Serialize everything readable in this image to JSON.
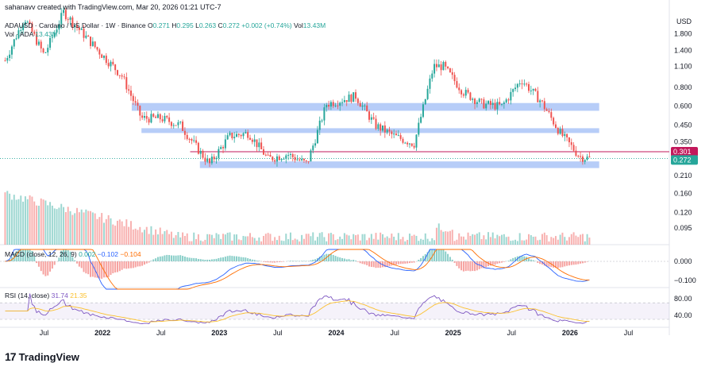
{
  "caption": "sahanavv created with TradingView.com, Mar 20, 2026 01:21 UTC-7",
  "legend": {
    "symbol": "ADAUSD · Cardano / US Dollar · 1W · Binance",
    "open_label": "O",
    "open": "0.271",
    "high_label": "H",
    "high": "0.295",
    "low_label": "L",
    "low": "0.263",
    "close_label": "C",
    "close": "0.272",
    "change": "+0.002 (+0.74%)",
    "vol_label": "Vol",
    "vol": "13.43M",
    "vol_ada_label": "Vol · ADA",
    "vol_ada": "13.43M",
    "macd_label": "MACD (close, 12, 26, 9)",
    "macd_v1": "0.002",
    "macd_v2": "−0.102",
    "macd_v3": "−0.104",
    "rsi_label": "RSI (14, close)",
    "rsi_v1": "31.74",
    "rsi_v2": "21.35"
  },
  "currency": "USD",
  "logo_text": "TradingView",
  "colors": {
    "up": "#26a69a",
    "down": "#ef5350",
    "zone": "#aac4f7",
    "resistance": "#c2185b",
    "macd_line": "#2962ff",
    "signal_line": "#ff6d00",
    "rsi_line": "#7e57c2",
    "rsi_ma": "#fbc02d"
  },
  "chart_data": [
    {
      "type": "candlestick",
      "title": "ADAUSD · Cardano / US Dollar · 1W · Binance",
      "y_scale": "log",
      "y_ticks": [
        "1.800",
        "1.400",
        "1.100",
        "0.800",
        "0.600",
        "0.450",
        "0.350",
        "0.210",
        "0.160",
        "0.120",
        "0.095"
      ],
      "x_ticks": [
        "Jul",
        "2022",
        "Jul",
        "2023",
        "Jul",
        "2024",
        "Jul",
        "2025",
        "Jul",
        "2026",
        "Jul"
      ],
      "ylim": [
        0.085,
        2.6
      ],
      "price_labels": [
        {
          "label": "0.301",
          "color": "#c2185b"
        },
        {
          "label": "0.272",
          "color": "#26a69a"
        }
      ],
      "support_resistance_zones": [
        {
          "x_start": "2022-04",
          "x_end": "2026-04",
          "y_low": 0.56,
          "y_high": 0.63
        },
        {
          "x_start": "2022-05",
          "x_end": "2026-04",
          "y_low": 0.4,
          "y_high": 0.43
        },
        {
          "x_start": "2022-11",
          "x_end": "2026-04",
          "y_low": 0.235,
          "y_high": 0.26
        }
      ],
      "horizontal_lines": [
        {
          "y": 0.301,
          "color": "#c2185b",
          "x_start": "2022-10"
        }
      ],
      "key_points": [
        {
          "date": "2021-03",
          "close": 1.2
        },
        {
          "date": "2021-05",
          "close": 2.3
        },
        {
          "date": "2021-07",
          "close": 1.3
        },
        {
          "date": "2021-09",
          "close": 2.5
        },
        {
          "date": "2021-11",
          "close": 1.8
        },
        {
          "date": "2022-01",
          "close": 1.3
        },
        {
          "date": "2022-03",
          "close": 0.95
        },
        {
          "date": "2022-05",
          "close": 0.5
        },
        {
          "date": "2022-07",
          "close": 0.5
        },
        {
          "date": "2022-09",
          "close": 0.45
        },
        {
          "date": "2022-11",
          "close": 0.3
        },
        {
          "date": "2022-12",
          "close": 0.25
        },
        {
          "date": "2023-02",
          "close": 0.38
        },
        {
          "date": "2023-04",
          "close": 0.4
        },
        {
          "date": "2023-06",
          "close": 0.27
        },
        {
          "date": "2023-08",
          "close": 0.29
        },
        {
          "date": "2023-10",
          "close": 0.25
        },
        {
          "date": "2023-12",
          "close": 0.62
        },
        {
          "date": "2024-03",
          "close": 0.7
        },
        {
          "date": "2024-05",
          "close": 0.45
        },
        {
          "date": "2024-07",
          "close": 0.38
        },
        {
          "date": "2024-09",
          "close": 0.34
        },
        {
          "date": "2024-11",
          "close": 1.1
        },
        {
          "date": "2024-12",
          "close": 1.1
        },
        {
          "date": "2025-02",
          "close": 0.75
        },
        {
          "date": "2025-04",
          "close": 0.62
        },
        {
          "date": "2025-06",
          "close": 0.6
        },
        {
          "date": "2025-08",
          "close": 0.9
        },
        {
          "date": "2025-10",
          "close": 0.65
        },
        {
          "date": "2025-12",
          "close": 0.4
        },
        {
          "date": "2026-02",
          "close": 0.28
        },
        {
          "date": "2026-03",
          "close": 0.272
        }
      ]
    },
    {
      "type": "bar",
      "title": "Vol · ADA",
      "note": "volume histogram beneath price"
    },
    {
      "type": "line",
      "title": "MACD (close, 12, 26, 9)",
      "y_ticks": [
        "0.000",
        "−0.100"
      ],
      "series": [
        {
          "name": "Histogram",
          "last": 0.002
        },
        {
          "name": "MACD",
          "last": -0.102
        },
        {
          "name": "Signal",
          "last": -0.104
        }
      ]
    },
    {
      "type": "line",
      "title": "RSI (14, close)",
      "y_ticks": [
        "80.00",
        "40.00"
      ],
      "series": [
        {
          "name": "RSI",
          "last": 31.74
        },
        {
          "name": "RSI-based MA",
          "last": 21.35
        }
      ]
    }
  ]
}
